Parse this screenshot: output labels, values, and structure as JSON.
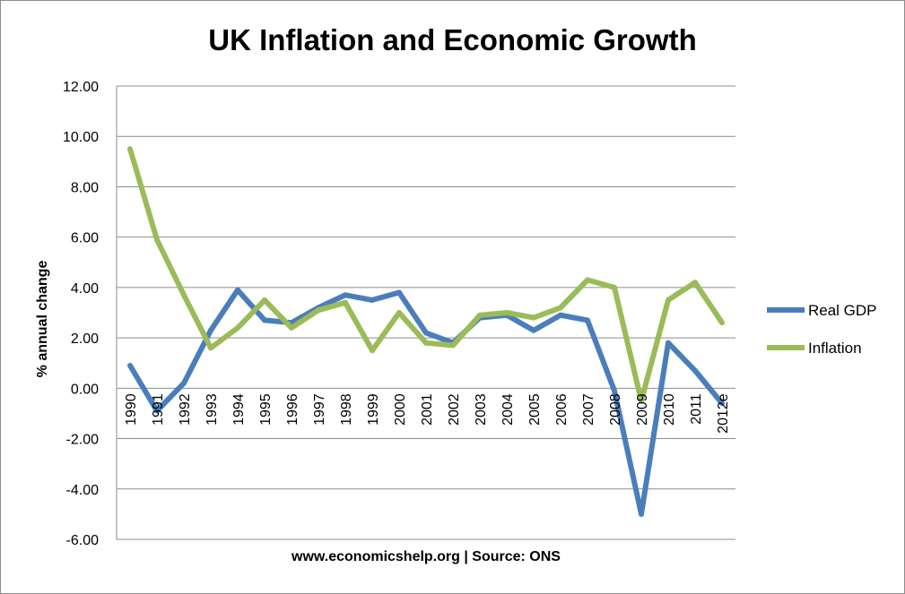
{
  "chart_data": {
    "type": "line",
    "title": "UK Inflation and Economic Growth",
    "xlabel": "www.economicshelp.org | Source: ONS",
    "ylabel": "% annual change",
    "categories": [
      "1990",
      "1991",
      "1992",
      "1993",
      "1994",
      "1995",
      "1996",
      "1997",
      "1998",
      "1999",
      "2000",
      "2001",
      "2002",
      "2003",
      "2004",
      "2005",
      "2006",
      "2007",
      "2008",
      "2009",
      "2010",
      "2011",
      "2012e"
    ],
    "series": [
      {
        "name": "Real GDP",
        "color": "#4a7ebb",
        "values": [
          0.9,
          -0.9,
          0.2,
          2.3,
          3.9,
          2.7,
          2.6,
          3.2,
          3.7,
          3.5,
          3.8,
          2.2,
          1.8,
          2.8,
          2.9,
          2.3,
          2.9,
          2.7,
          -0.1,
          -5.0,
          1.8,
          0.7,
          -0.6
        ]
      },
      {
        "name": "Inflation",
        "color": "#9bbb59",
        "values": [
          9.5,
          5.9,
          3.7,
          1.6,
          2.4,
          3.5,
          2.4,
          3.1,
          3.4,
          1.5,
          3.0,
          1.8,
          1.7,
          2.9,
          3.0,
          2.8,
          3.2,
          4.3,
          4.0,
          -0.5,
          3.5,
          4.2,
          2.6
        ]
      }
    ],
    "ylim": [
      -6,
      12
    ],
    "y_ticks": [
      "-6.00",
      "-4.00",
      "-2.00",
      "0.00",
      "2.00",
      "4.00",
      "6.00",
      "8.00",
      "10.00",
      "12.00"
    ],
    "grid": true,
    "legend_position": "right"
  }
}
